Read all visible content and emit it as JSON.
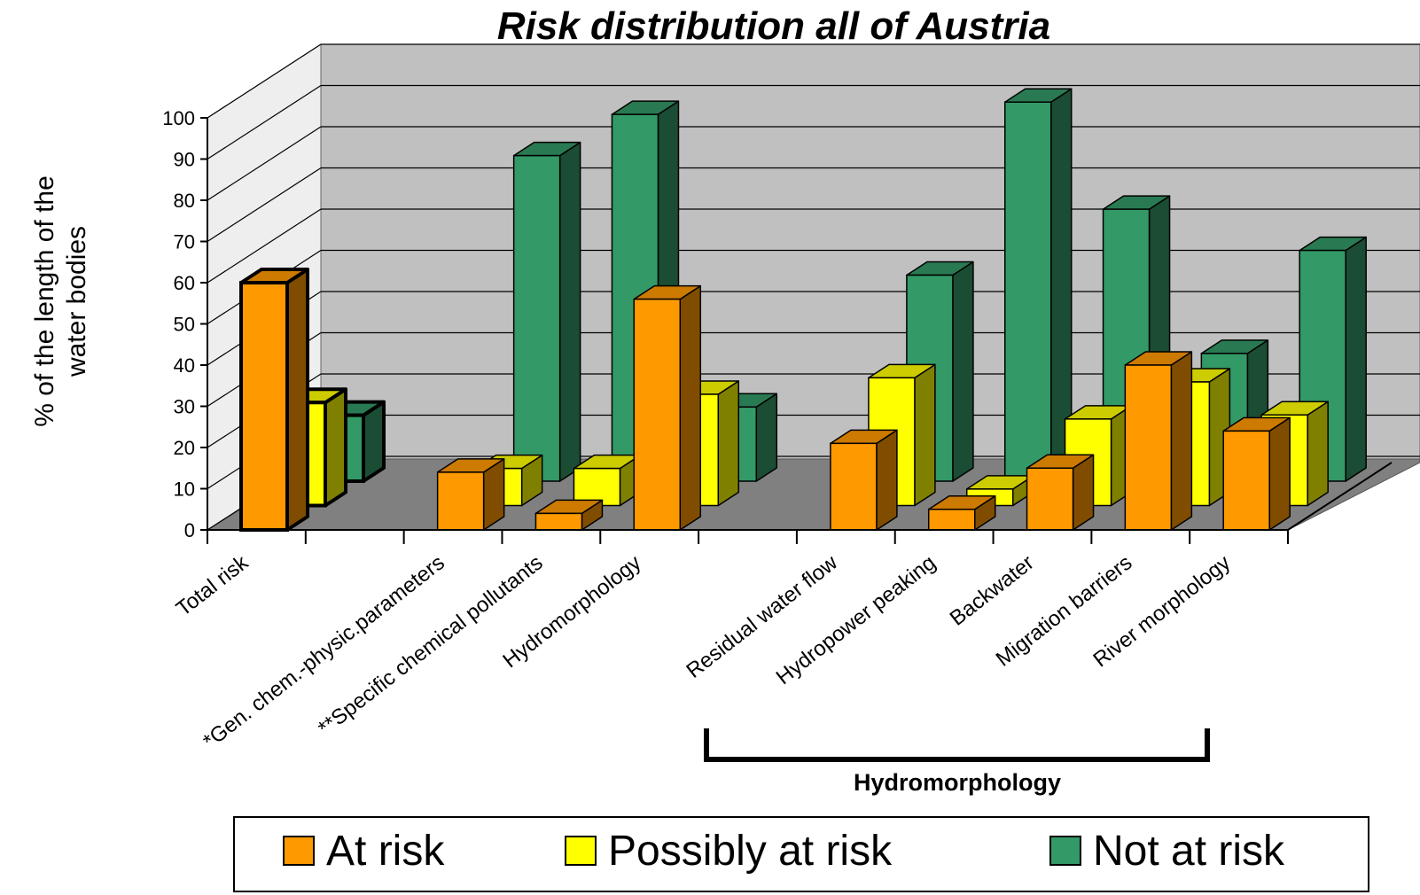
{
  "chart_data": {
    "type": "bar3d",
    "title": "Risk distribution all of Austria",
    "y_label": "% of the length of the water bodies",
    "annotation": "Hydromorphology",
    "categories": [
      "Total risk",
      null,
      "*Gen. chem.-physic.parameters",
      "**Specific chemical pollutants",
      "Hydromorphology",
      null,
      "Residual water flow",
      "Hydropower peaking",
      "Backwater",
      "Migration barriers",
      "River morphology"
    ],
    "series": [
      {
        "name": "At risk",
        "color": "#ff9900",
        "values": [
          60,
          null,
          14,
          4,
          56,
          null,
          21,
          5,
          15,
          40,
          24
        ]
      },
      {
        "name": "Possibly at risk",
        "color": "#ffff00",
        "values": [
          25,
          null,
          9,
          9,
          27,
          null,
          31,
          4,
          21,
          30,
          22
        ]
      },
      {
        "name": "Not at risk",
        "color": "#339966",
        "values": [
          16,
          null,
          79,
          89,
          18,
          null,
          50,
          92,
          66,
          31,
          56
        ]
      }
    ],
    "ylim": [
      0,
      100
    ],
    "yticks": [
      0,
      10,
      20,
      30,
      40,
      50,
      60,
      70,
      80,
      90,
      100
    ],
    "grid": true,
    "legend": "bottom"
  }
}
